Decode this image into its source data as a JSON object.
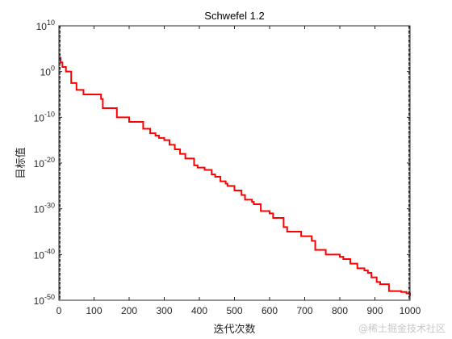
{
  "chart_data": {
    "type": "line",
    "title": "Schwefel 1.2",
    "xlabel": "迭代次数",
    "ylabel": "目标值",
    "y_scale": "log",
    "xlim": [
      0,
      1000
    ],
    "ylim": [
      1e-50,
      10000000000.0
    ],
    "x_ticks": [
      "0",
      "100",
      "200",
      "300",
      "400",
      "500",
      "600",
      "700",
      "800",
      "900",
      "1000"
    ],
    "y_ticks": [
      {
        "base": "10",
        "exp": "10"
      },
      {
        "base": "10",
        "exp": "0"
      },
      {
        "base": "10",
        "exp": "-10"
      },
      {
        "base": "10",
        "exp": "-20"
      },
      {
        "base": "10",
        "exp": "-30"
      },
      {
        "base": "10",
        "exp": "-40"
      },
      {
        "base": "10",
        "exp": "-50"
      }
    ],
    "y_ticks_log10": [
      10,
      0,
      -10,
      -20,
      -30,
      -40,
      -50
    ],
    "grid": false,
    "series": [
      {
        "color": "#ff0000",
        "x": [
          0,
          5,
          10,
          20,
          35,
          50,
          70,
          110,
          120,
          125,
          160,
          165,
          195,
          200,
          230,
          240,
          260,
          275,
          285,
          300,
          315,
          330,
          345,
          360,
          385,
          395,
          415,
          435,
          445,
          460,
          475,
          480,
          500,
          520,
          530,
          550,
          555,
          575,
          600,
          610,
          640,
          650,
          665,
          690,
          720,
          730,
          750,
          760,
          800,
          810,
          830,
          850,
          870,
          880,
          890,
          905,
          915,
          940,
          955,
          975,
          990,
          1000
        ],
        "log10y": [
          3,
          2,
          1,
          0,
          -2.5,
          -4,
          -5,
          -5,
          -6,
          -8,
          -8,
          -10,
          -10,
          -11,
          -11,
          -12.5,
          -13.5,
          -14,
          -14.5,
          -15,
          -16,
          -17,
          -18,
          -19,
          -20.5,
          -21,
          -21.5,
          -22.5,
          -23,
          -24,
          -24.5,
          -25,
          -26,
          -27,
          -28,
          -28.5,
          -29,
          -30.5,
          -31,
          -32,
          -34,
          -35,
          -35,
          -36,
          -37,
          -39,
          -39,
          -40,
          -40.5,
          -41,
          -42,
          -43,
          -43.5,
          -44,
          -45,
          -46,
          -46.5,
          -48,
          -48,
          -48.2,
          -48.5,
          -49
        ]
      }
    ]
  },
  "watermark": "@稀土掘金技术社区"
}
